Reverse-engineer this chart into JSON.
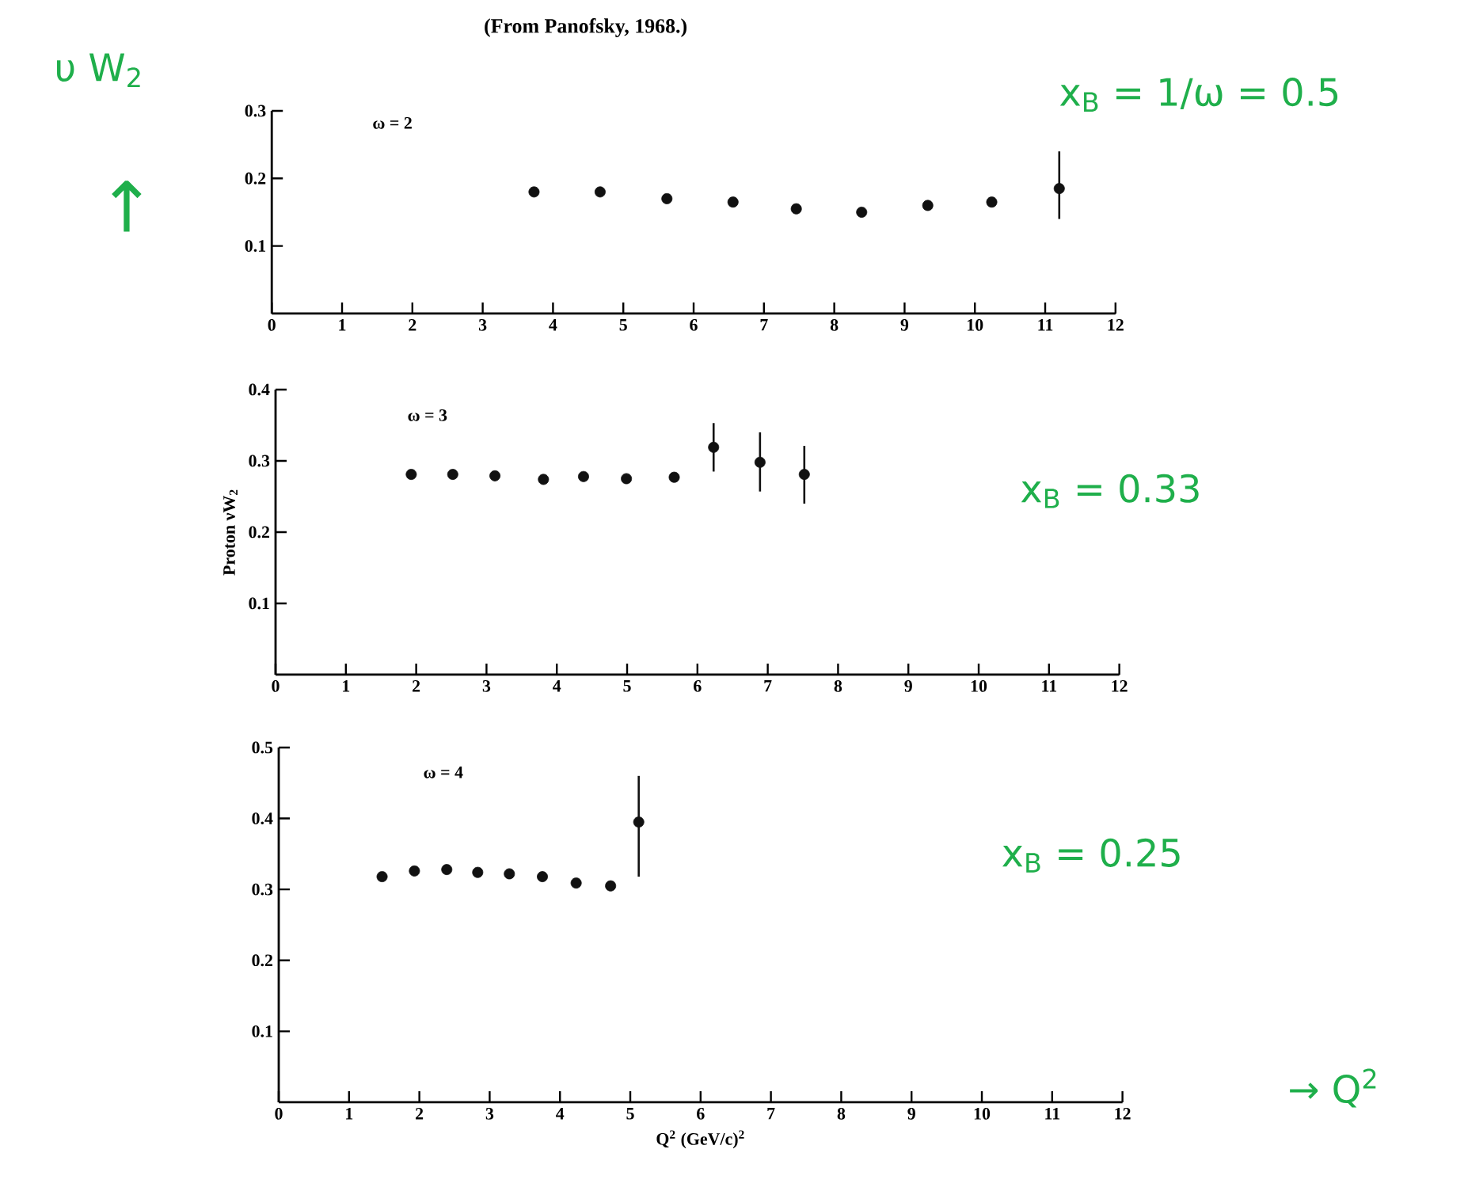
{
  "chart_data": [
    {
      "type": "scatter",
      "title": "(From Panofsky, 1968.)",
      "annotations": [
        "ω = 2",
        "x$_{B}$ = 1/ω = 0.5",
        "υ W$_{2}$",
        "↑"
      ],
      "x": [
        3.73,
        4.67,
        5.62,
        6.56,
        7.46,
        8.39,
        9.33,
        10.24,
        11.2
      ],
      "values": [
        0.18,
        0.18,
        0.17,
        0.165,
        0.155,
        0.15,
        0.16,
        0.165,
        0.185
      ],
      "errors": [
        null,
        null,
        null,
        null,
        null,
        null,
        null,
        null,
        [
          0.14,
          0.24
        ]
      ],
      "color": "#111111",
      "marker": "circle",
      "xlim": [
        0,
        12
      ],
      "ylim": [
        0,
        0.3
      ],
      "xticks": [
        0,
        1,
        2,
        3,
        4,
        5,
        6,
        7,
        8,
        9,
        10,
        11,
        12
      ],
      "yticks": [
        0.1,
        0.2,
        0.3
      ]
    },
    {
      "type": "scatter",
      "ylabel": "Proton νW$_{2}$",
      "annotations": [
        "ω = 3",
        "x$_{B}$ = 0.33"
      ],
      "x": [
        1.93,
        2.52,
        3.12,
        3.81,
        4.38,
        4.99,
        5.67,
        6.23,
        6.89,
        7.52
      ],
      "values": [
        0.281,
        0.281,
        0.279,
        0.274,
        0.278,
        0.275,
        0.277,
        0.319,
        0.298,
        0.281
      ],
      "errors": [
        null,
        null,
        null,
        null,
        null,
        null,
        null,
        [
          0.285,
          0.353
        ],
        [
          0.257,
          0.34
        ],
        [
          0.24,
          0.321
        ]
      ],
      "color": "#111111",
      "marker": "circle",
      "xlim": [
        0,
        12
      ],
      "ylim": [
        0,
        0.4
      ],
      "xticks": [
        0,
        1,
        2,
        3,
        4,
        5,
        6,
        7,
        8,
        9,
        10,
        11,
        12
      ],
      "yticks": [
        0.1,
        0.2,
        0.3,
        0.4
      ]
    },
    {
      "type": "scatter",
      "xlabel": "Q$^{2}$ (GeV/c)$^{2}$",
      "annotations": [
        "ω = 4",
        "x$_{B}$ = 0.25",
        "→ Q$^{2}$"
      ],
      "x": [
        1.47,
        1.93,
        2.39,
        2.83,
        3.28,
        3.75,
        4.23,
        4.72,
        5.12
      ],
      "values": [
        0.318,
        0.326,
        0.328,
        0.324,
        0.322,
        0.318,
        0.309,
        0.305,
        0.395
      ],
      "errors": [
        null,
        null,
        null,
        null,
        null,
        null,
        null,
        null,
        [
          0.318,
          0.46
        ]
      ],
      "color": "#111111",
      "marker": "circle",
      "xlim": [
        0,
        12
      ],
      "ylim": [
        0,
        0.5
      ],
      "xticks": [
        0,
        1,
        2,
        3,
        4,
        5,
        6,
        7,
        8,
        9,
        10,
        11,
        12
      ],
      "yticks": [
        0.1,
        0.2,
        0.3,
        0.4,
        0.5
      ]
    }
  ]
}
